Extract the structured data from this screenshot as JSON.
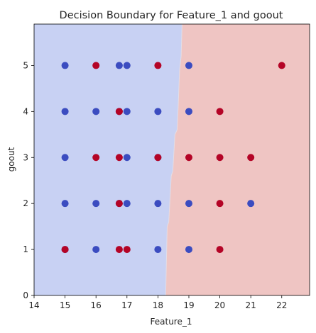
{
  "chart_data": {
    "type": "scatter",
    "title": "Decision Boundary for Feature_1 and goout",
    "xlabel": "Feature_1",
    "ylabel": "goout",
    "xlim": [
      14,
      22.9
    ],
    "ylim": [
      0,
      5.9
    ],
    "x_ticks": [
      "14",
      "15",
      "16",
      "17",
      "18",
      "19",
      "20",
      "21",
      "22"
    ],
    "y_ticks": [
      "0",
      "1",
      "2",
      "3",
      "4",
      "5"
    ],
    "grid": false,
    "regions": [
      {
        "name": "class 0",
        "color": "#c8d1f3"
      },
      {
        "name": "class 1",
        "color": "#efc5c3"
      }
    ],
    "boundary": [
      {
        "y": 0.0,
        "x": 18.25
      },
      {
        "y": 0.6,
        "x": 18.27
      },
      {
        "y": 1.5,
        "x": 18.3
      },
      {
        "y": 1.6,
        "x": 18.35
      },
      {
        "y": 2.6,
        "x": 18.43
      },
      {
        "y": 2.7,
        "x": 18.48
      },
      {
        "y": 3.5,
        "x": 18.55
      },
      {
        "y": 3.6,
        "x": 18.62
      },
      {
        "y": 4.2,
        "x": 18.66
      },
      {
        "y": 4.9,
        "x": 18.7
      },
      {
        "y": 5.2,
        "x": 18.75
      },
      {
        "y": 5.9,
        "x": 18.78
      }
    ],
    "series": [
      {
        "color": "#3b4cc0",
        "points": [
          [
            15,
            1
          ],
          [
            15,
            2
          ],
          [
            15,
            3
          ],
          [
            15,
            4
          ],
          [
            15,
            5
          ],
          [
            16,
            1
          ],
          [
            16,
            2
          ],
          [
            16,
            4
          ],
          [
            16.75,
            2
          ],
          [
            16.75,
            4
          ],
          [
            16.75,
            5
          ],
          [
            17,
            2
          ],
          [
            17,
            3
          ],
          [
            17,
            4
          ],
          [
            17,
            5
          ],
          [
            18,
            1
          ],
          [
            18,
            2
          ],
          [
            18,
            3
          ],
          [
            18,
            4
          ],
          [
            19,
            1
          ],
          [
            19,
            2
          ],
          [
            19,
            4
          ],
          [
            19,
            5
          ],
          [
            21,
            2
          ]
        ]
      },
      {
        "color": "#b40426",
        "points": [
          [
            15,
            1
          ],
          [
            16,
            3
          ],
          [
            16,
            5
          ],
          [
            16.75,
            1
          ],
          [
            16.75,
            2
          ],
          [
            16.75,
            3
          ],
          [
            16.75,
            4
          ],
          [
            17,
            1
          ],
          [
            18,
            3
          ],
          [
            18,
            5
          ],
          [
            19,
            3
          ],
          [
            20,
            1
          ],
          [
            20,
            2
          ],
          [
            20,
            3
          ],
          [
            20,
            4
          ],
          [
            21,
            3
          ],
          [
            22,
            5
          ]
        ]
      }
    ]
  }
}
